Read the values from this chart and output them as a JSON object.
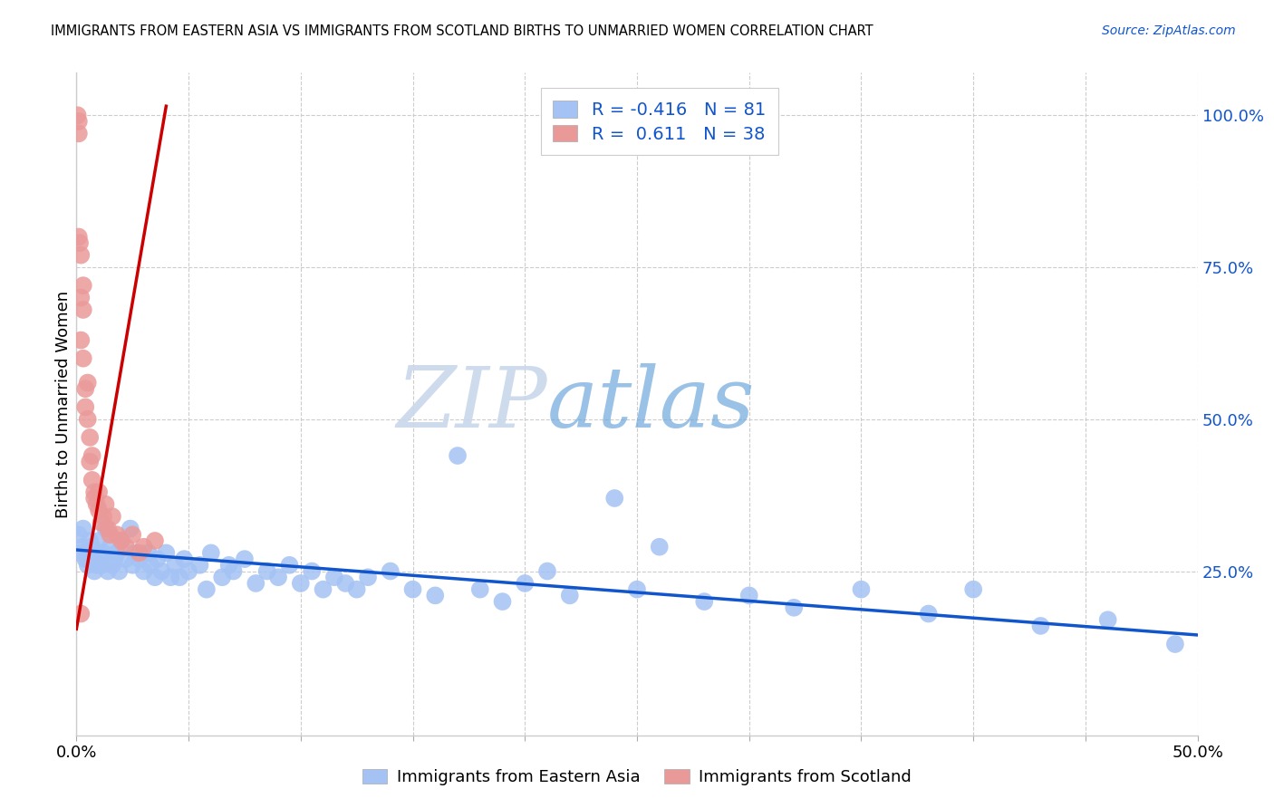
{
  "title": "IMMIGRANTS FROM EASTERN ASIA VS IMMIGRANTS FROM SCOTLAND BIRTHS TO UNMARRIED WOMEN CORRELATION CHART",
  "source": "Source: ZipAtlas.com",
  "ylabel": "Births to Unmarried Women",
  "xlim": [
    0.0,
    0.5
  ],
  "ylim": [
    -0.02,
    1.07
  ],
  "ytick_vals": [
    0.25,
    0.5,
    0.75,
    1.0
  ],
  "ytick_labels": [
    "25.0%",
    "50.0%",
    "75.0%",
    "100.0%"
  ],
  "xtick_vals": [
    0.0,
    0.05,
    0.1,
    0.15,
    0.2,
    0.25,
    0.3,
    0.35,
    0.4,
    0.45,
    0.5
  ],
  "blue_color": "#a4c2f4",
  "pink_color": "#ea9999",
  "blue_line_color": "#1155cc",
  "pink_line_color": "#cc0000",
  "R_blue": -0.416,
  "N_blue": 81,
  "R_pink": 0.611,
  "N_pink": 38,
  "legend_label_blue": "Immigrants from Eastern Asia",
  "legend_label_pink": "Immigrants from Scotland",
  "watermark_zip": "ZIP",
  "watermark_atlas": "atlas",
  "blue_scatter_x": [
    0.001,
    0.002,
    0.003,
    0.003,
    0.004,
    0.005,
    0.005,
    0.006,
    0.006,
    0.007,
    0.008,
    0.008,
    0.009,
    0.01,
    0.01,
    0.011,
    0.012,
    0.013,
    0.014,
    0.015,
    0.016,
    0.017,
    0.018,
    0.019,
    0.02,
    0.022,
    0.024,
    0.025,
    0.026,
    0.028,
    0.03,
    0.032,
    0.033,
    0.035,
    0.036,
    0.038,
    0.04,
    0.042,
    0.044,
    0.046,
    0.048,
    0.05,
    0.055,
    0.058,
    0.06,
    0.065,
    0.068,
    0.07,
    0.075,
    0.08,
    0.085,
    0.09,
    0.095,
    0.1,
    0.105,
    0.11,
    0.115,
    0.12,
    0.125,
    0.13,
    0.14,
    0.15,
    0.16,
    0.17,
    0.18,
    0.19,
    0.2,
    0.21,
    0.22,
    0.24,
    0.25,
    0.26,
    0.28,
    0.3,
    0.32,
    0.35,
    0.38,
    0.4,
    0.43,
    0.46,
    0.49
  ],
  "blue_scatter_y": [
    0.31,
    0.28,
    0.29,
    0.32,
    0.27,
    0.26,
    0.28,
    0.3,
    0.27,
    0.29,
    0.25,
    0.28,
    0.26,
    0.3,
    0.27,
    0.26,
    0.28,
    0.32,
    0.25,
    0.29,
    0.26,
    0.27,
    0.28,
    0.25,
    0.3,
    0.27,
    0.32,
    0.26,
    0.28,
    0.27,
    0.25,
    0.28,
    0.26,
    0.24,
    0.27,
    0.25,
    0.28,
    0.24,
    0.26,
    0.24,
    0.27,
    0.25,
    0.26,
    0.22,
    0.28,
    0.24,
    0.26,
    0.25,
    0.27,
    0.23,
    0.25,
    0.24,
    0.26,
    0.23,
    0.25,
    0.22,
    0.24,
    0.23,
    0.22,
    0.24,
    0.25,
    0.22,
    0.21,
    0.44,
    0.22,
    0.2,
    0.23,
    0.25,
    0.21,
    0.37,
    0.22,
    0.29,
    0.2,
    0.21,
    0.19,
    0.22,
    0.18,
    0.22,
    0.16,
    0.17,
    0.13
  ],
  "pink_scatter_x": [
    0.0005,
    0.001,
    0.001,
    0.001,
    0.0015,
    0.002,
    0.002,
    0.002,
    0.003,
    0.003,
    0.003,
    0.004,
    0.004,
    0.005,
    0.005,
    0.006,
    0.006,
    0.007,
    0.007,
    0.008,
    0.008,
    0.009,
    0.01,
    0.01,
    0.011,
    0.012,
    0.013,
    0.014,
    0.015,
    0.016,
    0.018,
    0.02,
    0.022,
    0.025,
    0.028,
    0.03,
    0.035,
    0.002
  ],
  "pink_scatter_y": [
    1.0,
    0.99,
    0.97,
    0.8,
    0.79,
    0.77,
    0.7,
    0.63,
    0.72,
    0.68,
    0.6,
    0.55,
    0.52,
    0.56,
    0.5,
    0.47,
    0.43,
    0.44,
    0.4,
    0.38,
    0.37,
    0.36,
    0.38,
    0.35,
    0.33,
    0.34,
    0.36,
    0.32,
    0.31,
    0.34,
    0.31,
    0.3,
    0.29,
    0.31,
    0.28,
    0.29,
    0.3,
    0.18
  ],
  "blue_trend_x": [
    0.0,
    0.5
  ],
  "blue_trend_y": [
    0.285,
    0.145
  ],
  "pink_trend_x": [
    0.0,
    0.04
  ],
  "pink_trend_y": [
    0.155,
    1.015
  ]
}
